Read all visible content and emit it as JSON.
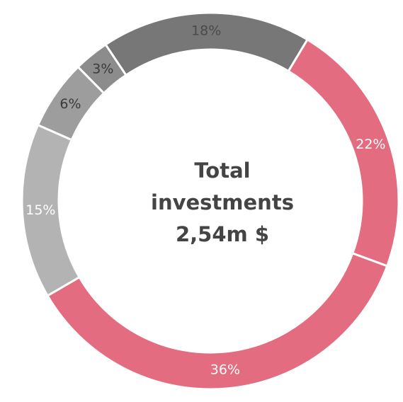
{
  "chart_data": {
    "type": "donut",
    "center_text": [
      "Total",
      "investments",
      "2,54m $"
    ],
    "values": [
      18,
      22,
      36,
      15,
      6,
      3
    ],
    "value_labels": [
      "18%",
      "22%",
      "36%",
      "15%",
      "6%",
      "3%"
    ],
    "colors": [
      "#777777",
      "#e36c80",
      "#e36c80",
      "#b3b3b3",
      "#9d9d9d",
      "#8c8c8c"
    ],
    "label_colors": [
      "#4a4a4a",
      "#ffffff",
      "#ffffff",
      "#ffffff",
      "#3a3a3a",
      "#3a3a3a"
    ],
    "start_angle": -33.8
  }
}
